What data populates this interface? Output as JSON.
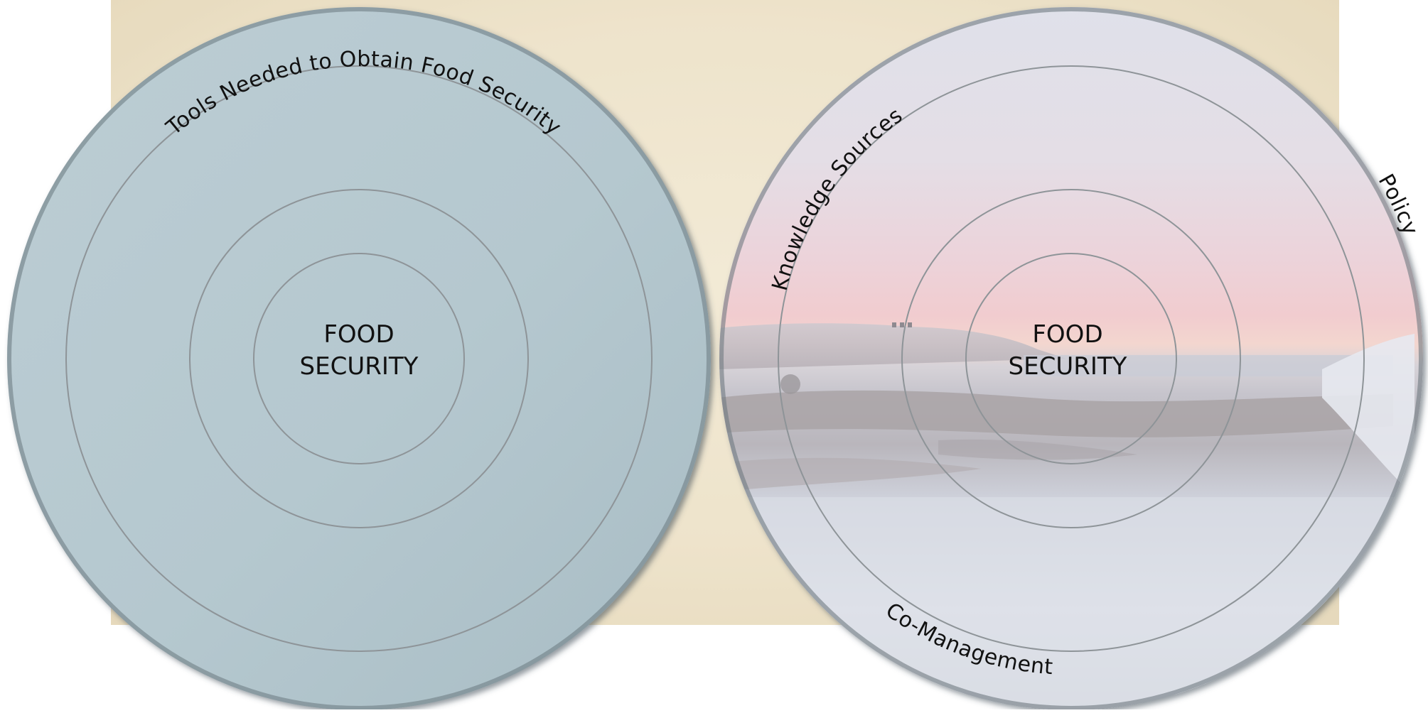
{
  "colors": {
    "parchment": "#f1e8d2",
    "left_disc": "#b5c8cf",
    "ring_stroke": "#8e9498",
    "disc_edge": "#5f6b72"
  },
  "left_diagram": {
    "outer_label": "Tools Needed to Obtain Food Security",
    "center_line1": "FOOD",
    "center_line2": "SECURITY"
  },
  "right_diagram": {
    "label_knowledge": "Knowledge Sources",
    "label_policy": "Policy",
    "label_comanagement": "Co-Management",
    "center_line1": "FOOD",
    "center_line2": "SECURITY"
  }
}
